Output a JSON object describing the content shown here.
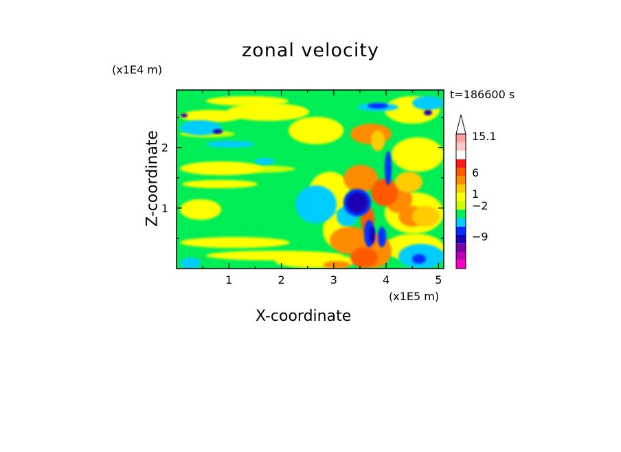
{
  "figure": {
    "title": "zonal velocity",
    "y_unit": "(x1E4 m)",
    "x_unit": "(x1E5 m)",
    "time_label": "t=186600 s"
  },
  "chart_data": {
    "type": "heatmap",
    "title": "zonal velocity",
    "xlabel": "X-coordinate",
    "ylabel": "Z-coordinate",
    "x_unit": "(x1E5 m)",
    "y_unit": "(x1E4 m)",
    "xlim": [
      0,
      5.1
    ],
    "ylim": [
      0,
      2.95
    ],
    "x_ticks": [
      1,
      2,
      3,
      4,
      5
    ],
    "y_ticks": [
      1,
      2
    ],
    "annotation": "t=186600 s",
    "colorbar": {
      "position": "right",
      "labels": [
        {
          "text": "15.1",
          "value": 15.1
        },
        {
          "text": "6",
          "value": 6
        },
        {
          "text": "1",
          "value": 1
        },
        {
          "text": "−2",
          "value": -2
        },
        {
          "text": "−9",
          "value": -9
        }
      ],
      "levels": [
        {
          "color": "#ff00c8"
        },
        {
          "color": "#c000b8"
        },
        {
          "color": "#7a00a8"
        },
        {
          "color": "#1c00b4"
        },
        {
          "color": "#0030ff"
        },
        {
          "color": "#00ccff"
        },
        {
          "color": "#00ee55"
        },
        {
          "color": "#ccff00"
        },
        {
          "color": "#ffff00"
        },
        {
          "color": "#ffcc00"
        },
        {
          "color": "#ff8c00"
        },
        {
          "color": "#ff5a00"
        },
        {
          "color": "#ff1a1a"
        },
        {
          "color": "#ffffff"
        },
        {
          "color": "#ffc8c8"
        },
        {
          "color": "#ffa0a0"
        }
      ]
    },
    "field_regions": [
      {
        "level": "green",
        "x": [
          0,
          5.1
        ],
        "z": [
          0,
          2.95
        ]
      },
      {
        "level": "yellow",
        "x": [
          0,
          1.6
        ],
        "z": [
          2.55,
          2.95
        ]
      },
      {
        "level": "yellow",
        "x": [
          0,
          2.3
        ],
        "z": [
          1.05,
          1.75
        ]
      },
      {
        "level": "yellow",
        "x": [
          3.5,
          5.1
        ],
        "z": [
          0.2,
          0.9
        ]
      },
      {
        "level": "cyan",
        "x": [
          3.2,
          3.7
        ],
        "z": [
          0.6,
          1.3
        ]
      },
      {
        "level": "blue",
        "x": [
          3.3,
          3.6
        ],
        "z": [
          0.9,
          1.3
        ]
      },
      {
        "level": "orange",
        "x": [
          3.8,
          4.2
        ],
        "z": [
          0.9,
          1.3
        ]
      },
      {
        "level": "cyan",
        "x": [
          0,
          0.4
        ],
        "z": [
          2.2,
          2.7
        ]
      },
      {
        "level": "cyan",
        "x": [
          4.5,
          5.1
        ],
        "z": [
          2.2,
          2.8
        ]
      }
    ]
  },
  "colors": {
    "background": "#ffffff",
    "field_base": "#00ee55",
    "frame": "#000000"
  }
}
